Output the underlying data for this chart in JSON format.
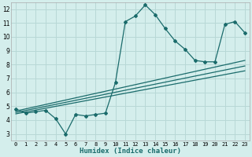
{
  "xlabel": "Humidex (Indice chaleur)",
  "ylabel": "",
  "bg_color": "#d4eeec",
  "grid_color": "#b8d8d6",
  "line_color": "#1a6b6b",
  "xlim": [
    -0.5,
    23.5
  ],
  "ylim": [
    2.5,
    12.5
  ],
  "xticks": [
    0,
    1,
    2,
    3,
    4,
    5,
    6,
    7,
    8,
    9,
    10,
    11,
    12,
    13,
    14,
    15,
    16,
    17,
    18,
    19,
    20,
    21,
    22,
    23
  ],
  "yticks": [
    3,
    4,
    5,
    6,
    7,
    8,
    9,
    10,
    11,
    12
  ],
  "series1_x": [
    0,
    1,
    2,
    3,
    4,
    5,
    6,
    7,
    8,
    9,
    10,
    11,
    12,
    13,
    14,
    15,
    16,
    17,
    18,
    19,
    20,
    21,
    22,
    23
  ],
  "series1_y": [
    4.8,
    4.5,
    4.6,
    4.7,
    4.1,
    3.0,
    4.4,
    4.3,
    4.4,
    4.5,
    6.7,
    11.1,
    11.5,
    12.3,
    11.6,
    10.6,
    9.7,
    9.1,
    8.3,
    8.2,
    8.2,
    10.9,
    11.1,
    10.3
  ],
  "line2_x": [
    0,
    23
  ],
  "line2_y": [
    4.65,
    8.3
  ],
  "line3_x": [
    0,
    23
  ],
  "line3_y": [
    4.55,
    7.9
  ],
  "line4_x": [
    0,
    23
  ],
  "line4_y": [
    4.45,
    7.55
  ]
}
